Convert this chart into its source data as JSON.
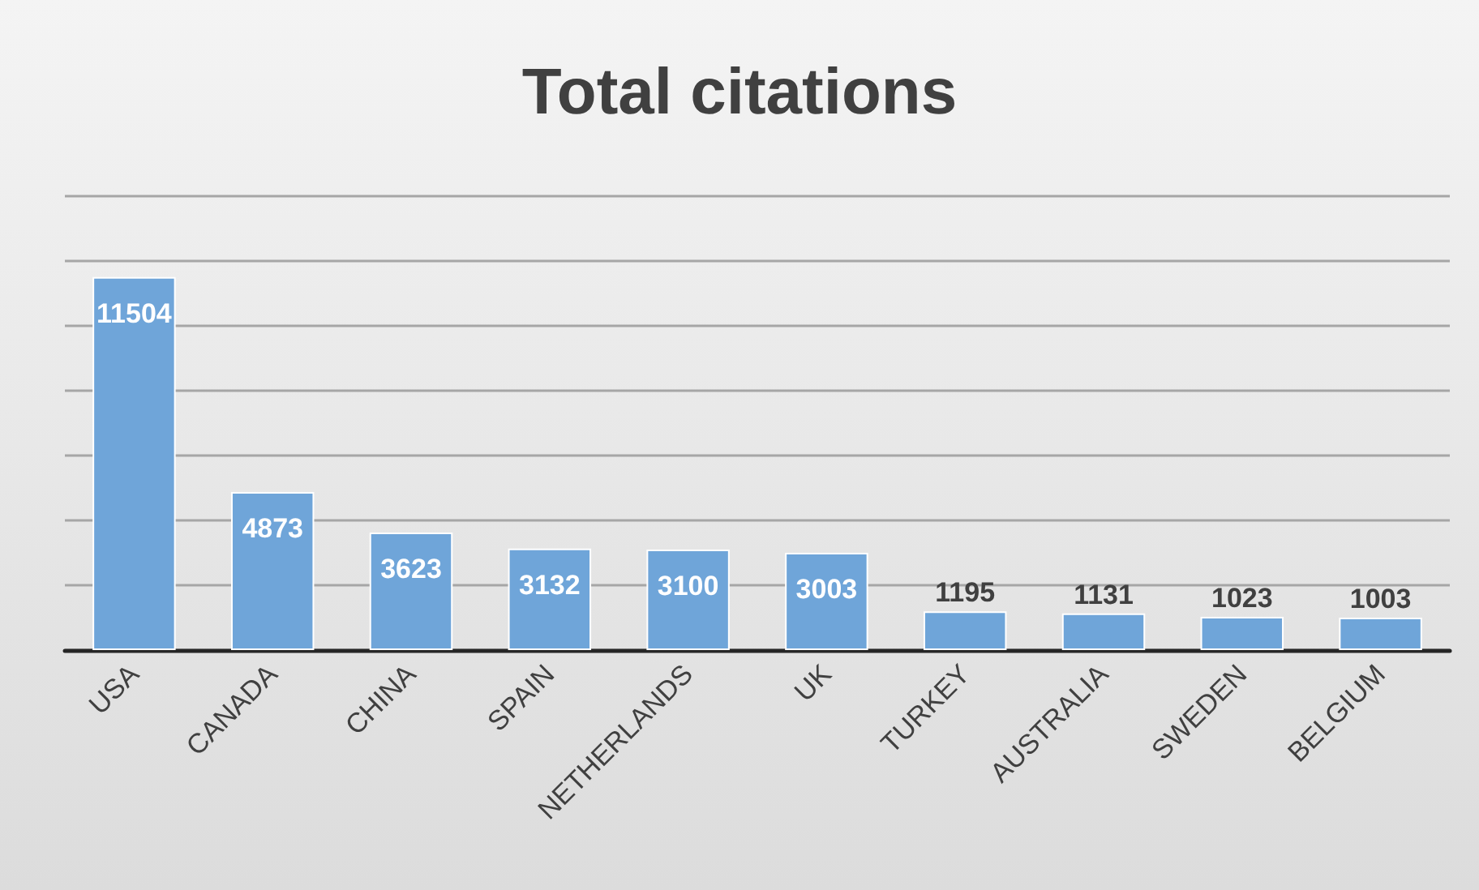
{
  "chart_data": {
    "type": "bar",
    "title": "Total citations",
    "categories": [
      "USA",
      "CANADA",
      "CHINA",
      "SPAIN",
      "NETHERLANDS",
      "UK",
      "TURKEY",
      "AUSTRALIA",
      "SWEDEN",
      "BELGIUM"
    ],
    "values": [
      11504,
      4873,
      3623,
      3132,
      3100,
      3003,
      1195,
      1131,
      1023,
      1003
    ],
    "color": "#6fa5d9",
    "ylim": [
      0,
      14000
    ],
    "yticks": [
      {
        "value": 0,
        "label": null
      },
      {
        "value": 2000,
        "label": null
      },
      {
        "value": 4000,
        "label": null
      },
      {
        "value": 6000,
        "label": null
      },
      {
        "value": 8000,
        "label": null
      },
      {
        "value": 10000,
        "label": null
      },
      {
        "value": 12000,
        "label": null
      },
      {
        "value": 14000,
        "label": null
      }
    ],
    "tick_labels": "x",
    "grid": "y",
    "data_labels": true
  }
}
